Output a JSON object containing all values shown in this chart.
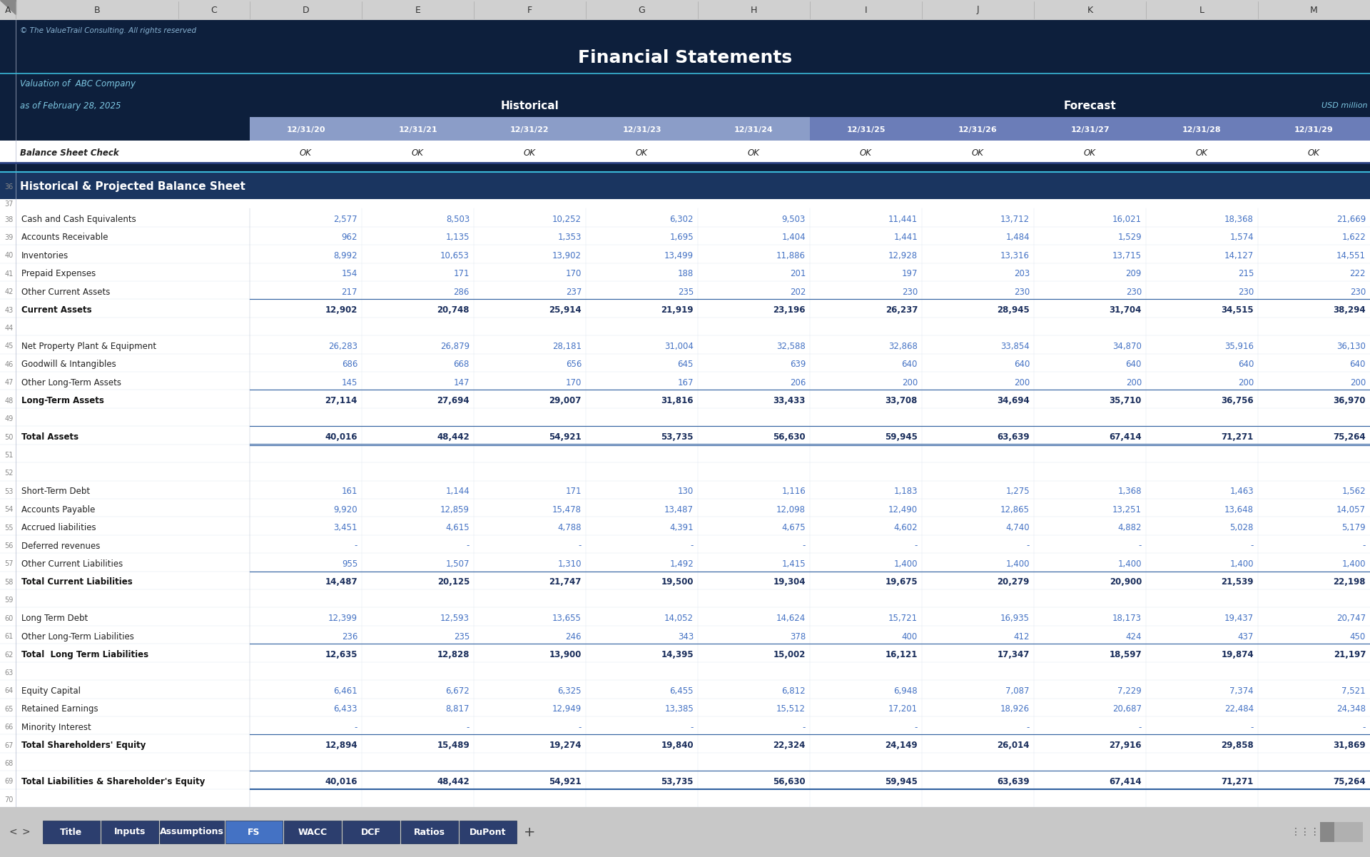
{
  "title": "Financial Statements",
  "copyright": "© The ValueTrail Consulting. All rights reserved",
  "valuation_of": "Valuation of  ABC Company",
  "as_of": "as of February 28, 2025",
  "usd_label": "USD million",
  "historical_label": "Historical",
  "forecast_label": "Forecast",
  "col_headers": [
    "12/31/20",
    "12/31/21",
    "12/31/22",
    "12/31/23",
    "12/31/24",
    "12/31/25",
    "12/31/26",
    "12/31/27",
    "12/31/28",
    "12/31/29"
  ],
  "balance_sheet_check_label": "Balance Sheet Check",
  "balance_sheet_check_values": [
    "OK",
    "OK",
    "OK",
    "OK",
    "OK",
    "OK",
    "OK",
    "OK",
    "OK",
    "OK"
  ],
  "section_title": "Historical & Projected Balance Sheet",
  "bg_dark": "#0d1f3c",
  "text_white": "#ffffff",
  "text_blue": "#4472c4",
  "text_cyan": "#7ec8e3",
  "grid_line": "#c8d4e8",
  "col_header_bg_hist": "#8b9dc8",
  "col_header_bg_fore": "#6b7db8",
  "section_header_bg": "#1a3560",
  "tab_selected_bg": "#4472c4",
  "tab_unselected_bg": "#2c3e6e",
  "rows": [
    {
      "row": 38,
      "label": "Cash and Cash Equivalents",
      "bold": false,
      "values": [
        "2,577",
        "8,503",
        "10,252",
        "6,302",
        "9,503",
        "11,441",
        "13,712",
        "16,021",
        "18,368",
        "21,669"
      ]
    },
    {
      "row": 39,
      "label": "Accounts Receivable",
      "bold": false,
      "values": [
        "962",
        "1,135",
        "1,353",
        "1,695",
        "1,404",
        "1,441",
        "1,484",
        "1,529",
        "1,574",
        "1,622"
      ]
    },
    {
      "row": 40,
      "label": "Inventories",
      "bold": false,
      "values": [
        "8,992",
        "10,653",
        "13,902",
        "13,499",
        "11,886",
        "12,928",
        "13,316",
        "13,715",
        "14,127",
        "14,551"
      ]
    },
    {
      "row": 41,
      "label": "Prepaid Expenses",
      "bold": false,
      "values": [
        "154",
        "171",
        "170",
        "188",
        "201",
        "197",
        "203",
        "209",
        "215",
        "222"
      ]
    },
    {
      "row": 42,
      "label": "Other Current Assets",
      "bold": false,
      "values": [
        "217",
        "286",
        "237",
        "235",
        "202",
        "230",
        "230",
        "230",
        "230",
        "230"
      ]
    },
    {
      "row": 43,
      "label": "Current Assets",
      "bold": true,
      "values": [
        "12,902",
        "20,748",
        "25,914",
        "21,919",
        "23,196",
        "26,237",
        "28,945",
        "31,704",
        "34,515",
        "38,294"
      ],
      "top_border": true
    },
    {
      "row": 44,
      "label": "",
      "bold": false,
      "values": [
        "",
        "",
        "",
        "",
        "",
        "",
        "",
        "",
        "",
        ""
      ]
    },
    {
      "row": 45,
      "label": "Net Property Plant & Equipment",
      "bold": false,
      "values": [
        "26,283",
        "26,879",
        "28,181",
        "31,004",
        "32,588",
        "32,868",
        "33,854",
        "34,870",
        "35,916",
        "36,130"
      ]
    },
    {
      "row": 46,
      "label": "Goodwill & Intangibles",
      "bold": false,
      "values": [
        "686",
        "668",
        "656",
        "645",
        "639",
        "640",
        "640",
        "640",
        "640",
        "640"
      ]
    },
    {
      "row": 47,
      "label": "Other Long-Term Assets",
      "bold": false,
      "values": [
        "145",
        "147",
        "170",
        "167",
        "206",
        "200",
        "200",
        "200",
        "200",
        "200"
      ]
    },
    {
      "row": 48,
      "label": "Long-Term Assets",
      "bold": true,
      "values": [
        "27,114",
        "27,694",
        "29,007",
        "31,816",
        "33,433",
        "33,708",
        "34,694",
        "35,710",
        "36,756",
        "36,970"
      ],
      "top_border": true
    },
    {
      "row": 49,
      "label": "",
      "bold": false,
      "values": [
        "",
        "",
        "",
        "",
        "",
        "",
        "",
        "",
        "",
        ""
      ]
    },
    {
      "row": 50,
      "label": "Total Assets",
      "bold": true,
      "values": [
        "40,016",
        "48,442",
        "54,921",
        "53,735",
        "56,630",
        "59,945",
        "63,639",
        "67,414",
        "71,271",
        "75,264"
      ],
      "double_border": true
    },
    {
      "row": 51,
      "label": "",
      "bold": false,
      "values": [
        "",
        "",
        "",
        "",
        "",
        "",
        "",
        "",
        "",
        ""
      ]
    },
    {
      "row": 52,
      "label": "",
      "bold": false,
      "values": [
        "",
        "",
        "",
        "",
        "",
        "",
        "",
        "",
        "",
        ""
      ]
    },
    {
      "row": 53,
      "label": "Short-Term Debt",
      "bold": false,
      "values": [
        "161",
        "1,144",
        "171",
        "130",
        "1,116",
        "1,183",
        "1,275",
        "1,368",
        "1,463",
        "1,562"
      ]
    },
    {
      "row": 54,
      "label": "Accounts Payable",
      "bold": false,
      "values": [
        "9,920",
        "12,859",
        "15,478",
        "13,487",
        "12,098",
        "12,490",
        "12,865",
        "13,251",
        "13,648",
        "14,057"
      ]
    },
    {
      "row": 55,
      "label": "Accrued liabilities",
      "bold": false,
      "values": [
        "3,451",
        "4,615",
        "4,788",
        "4,391",
        "4,675",
        "4,602",
        "4,740",
        "4,882",
        "5,028",
        "5,179"
      ]
    },
    {
      "row": 56,
      "label": "Deferred revenues",
      "bold": false,
      "values": [
        "-",
        "-",
        "-",
        "-",
        "-",
        "-",
        "-",
        "-",
        "-",
        "-"
      ]
    },
    {
      "row": 57,
      "label": "Other Current Liabilities",
      "bold": false,
      "values": [
        "955",
        "1,507",
        "1,310",
        "1,492",
        "1,415",
        "1,400",
        "1,400",
        "1,400",
        "1,400",
        "1,400"
      ]
    },
    {
      "row": 58,
      "label": "Total Current Liabilities",
      "bold": true,
      "values": [
        "14,487",
        "20,125",
        "21,747",
        "19,500",
        "19,304",
        "19,675",
        "20,279",
        "20,900",
        "21,539",
        "22,198"
      ],
      "top_border": true
    },
    {
      "row": 59,
      "label": "",
      "bold": false,
      "values": [
        "",
        "",
        "",
        "",
        "",
        "",
        "",
        "",
        "",
        ""
      ]
    },
    {
      "row": 60,
      "label": "Long Term Debt",
      "bold": false,
      "values": [
        "12,399",
        "12,593",
        "13,655",
        "14,052",
        "14,624",
        "15,721",
        "16,935",
        "18,173",
        "19,437",
        "20,747"
      ]
    },
    {
      "row": 61,
      "label": "Other Long-Term Liabilities",
      "bold": false,
      "values": [
        "236",
        "235",
        "246",
        "343",
        "378",
        "400",
        "412",
        "424",
        "437",
        "450"
      ]
    },
    {
      "row": 62,
      "label": "Total  Long Term Liabilities",
      "bold": true,
      "values": [
        "12,635",
        "12,828",
        "13,900",
        "14,395",
        "15,002",
        "16,121",
        "17,347",
        "18,597",
        "19,874",
        "21,197"
      ],
      "top_border": true
    },
    {
      "row": 63,
      "label": "",
      "bold": false,
      "values": [
        "",
        "",
        "",
        "",
        "",
        "",
        "",
        "",
        "",
        ""
      ]
    },
    {
      "row": 64,
      "label": "Equity Capital",
      "bold": false,
      "values": [
        "6,461",
        "6,672",
        "6,325",
        "6,455",
        "6,812",
        "6,948",
        "7,087",
        "7,229",
        "7,374",
        "7,521"
      ]
    },
    {
      "row": 65,
      "label": "Retained Earnings",
      "bold": false,
      "values": [
        "6,433",
        "8,817",
        "12,949",
        "13,385",
        "15,512",
        "17,201",
        "18,926",
        "20,687",
        "22,484",
        "24,348"
      ]
    },
    {
      "row": 66,
      "label": "Minority Interest",
      "bold": false,
      "values": [
        "-",
        "-",
        "-",
        "-",
        "-",
        "-",
        "-",
        "-",
        "-",
        "-"
      ]
    },
    {
      "row": 67,
      "label": "Total Shareholders' Equity",
      "bold": true,
      "values": [
        "12,894",
        "15,489",
        "19,274",
        "19,840",
        "22,324",
        "24,149",
        "26,014",
        "27,916",
        "29,858",
        "31,869"
      ],
      "top_border": true
    },
    {
      "row": 68,
      "label": "",
      "bold": false,
      "values": [
        "",
        "",
        "",
        "",
        "",
        "",
        "",
        "",
        "",
        ""
      ]
    },
    {
      "row": 69,
      "label": "Total Liabilities & Shareholder's Equity",
      "bold": true,
      "values": [
        "40,016",
        "48,442",
        "54,921",
        "53,735",
        "56,630",
        "59,945",
        "63,639",
        "67,414",
        "71,271",
        "75,264"
      ],
      "double_border": true
    },
    {
      "row": 70,
      "label": "",
      "bold": false,
      "values": [
        "",
        "",
        "",
        "",
        "",
        "",
        "",
        "",
        "",
        ""
      ]
    }
  ],
  "tabs": [
    "Title",
    "Inputs",
    "Assumptions",
    "FS",
    "WACC",
    "DCF",
    "Ratios",
    "DuPont"
  ],
  "active_tab": "FS"
}
